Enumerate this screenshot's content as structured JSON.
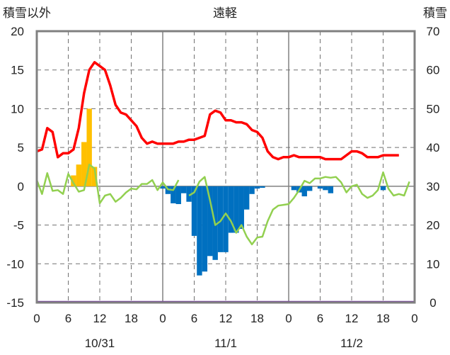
{
  "chart_data": {
    "type": "line",
    "title": "遠軽",
    "left_axis_label": "積雪以外",
    "right_axis_label": "積雪",
    "ylim_left": [
      -15,
      20
    ],
    "ylim_right": [
      0,
      70
    ],
    "left_ticks": [
      "20",
      "15",
      "10",
      "5",
      "0",
      "-5",
      "-10",
      "-15"
    ],
    "right_ticks": [
      "70",
      "60",
      "50",
      "40",
      "30",
      "20",
      "10",
      "0"
    ],
    "x_range_hours": [
      0,
      72
    ],
    "x_tick_labels": [
      "0",
      "6",
      "12",
      "18",
      "0",
      "6",
      "12",
      "18",
      "0",
      "6",
      "12",
      "18",
      "0"
    ],
    "date_labels": [
      "10/31",
      "11/1",
      "11/2"
    ],
    "colors": {
      "snow_depth": "#ff0000",
      "temperature": "#92d050",
      "snowfall_bars": "#ffc000",
      "negative_bars": "#0070c0",
      "bottom_line": "#7030a0"
    },
    "snow_depth_right_axis": [
      [
        0,
        39
      ],
      [
        1,
        39.5
      ],
      [
        2,
        45
      ],
      [
        3,
        44
      ],
      [
        4,
        37.5
      ],
      [
        5,
        38.5
      ],
      [
        6,
        38.5
      ],
      [
        7,
        39.5
      ],
      [
        8,
        45
      ],
      [
        9,
        54
      ],
      [
        10,
        60
      ],
      [
        11,
        62
      ],
      [
        12,
        61
      ],
      [
        13,
        60
      ],
      [
        14,
        56
      ],
      [
        15,
        51
      ],
      [
        16,
        49
      ],
      [
        17,
        48.5
      ],
      [
        18,
        47
      ],
      [
        19,
        45.5
      ],
      [
        20,
        42.5
      ],
      [
        21,
        41
      ],
      [
        22,
        41.5
      ],
      [
        23,
        41
      ],
      [
        24,
        41
      ],
      [
        25,
        41
      ],
      [
        26,
        41
      ],
      [
        27,
        41.5
      ],
      [
        28,
        41.5
      ],
      [
        29,
        42
      ],
      [
        30,
        42
      ],
      [
        31,
        42.5
      ],
      [
        32,
        43
      ],
      [
        33,
        48.5
      ],
      [
        34,
        49.5
      ],
      [
        35,
        49
      ],
      [
        36,
        47
      ],
      [
        37,
        47
      ],
      [
        38,
        46.5
      ],
      [
        39,
        46.5
      ],
      [
        40,
        46
      ],
      [
        41,
        44.5
      ],
      [
        42,
        44
      ],
      [
        43,
        42.5
      ],
      [
        44,
        39
      ],
      [
        45,
        37.5
      ],
      [
        46,
        37
      ],
      [
        47,
        37.5
      ],
      [
        48,
        37.5
      ],
      [
        49,
        38
      ],
      [
        50,
        37.5
      ],
      [
        51,
        37.5
      ],
      [
        52,
        37.5
      ],
      [
        53,
        37.5
      ],
      [
        54,
        37.5
      ],
      [
        55,
        37
      ],
      [
        56,
        37
      ],
      [
        57,
        37
      ],
      [
        58,
        37
      ],
      [
        59,
        38
      ],
      [
        60,
        39
      ],
      [
        61,
        39
      ],
      [
        62,
        38.5
      ],
      [
        63,
        37.5
      ],
      [
        64,
        37.5
      ],
      [
        65,
        37.5
      ],
      [
        66,
        38
      ],
      [
        67,
        38
      ],
      [
        68,
        38
      ],
      [
        69,
        38
      ]
    ],
    "temperature_left_axis": [
      [
        0,
        0.8
      ],
      [
        1,
        -1
      ],
      [
        2,
        1.7
      ],
      [
        3,
        -0.6
      ],
      [
        4,
        -0.5
      ],
      [
        5,
        -1
      ],
      [
        6,
        1.6
      ],
      [
        7,
        0.4
      ],
      [
        8,
        -0.7
      ],
      [
        9,
        -0.5
      ],
      [
        10,
        2.8
      ],
      [
        11,
        2.3
      ],
      [
        12,
        -2.2
      ],
      [
        13,
        -1.2
      ],
      [
        14,
        -1
      ],
      [
        15,
        -2
      ],
      [
        16,
        -1.5
      ],
      [
        17,
        -0.8
      ],
      [
        18,
        -0.3
      ],
      [
        19,
        -0.4
      ],
      [
        20,
        0.3
      ],
      [
        21,
        0.3
      ],
      [
        22,
        0.8
      ],
      [
        23,
        -0.5
      ],
      [
        24,
        0.5
      ],
      [
        25,
        -0.4
      ],
      [
        26,
        -0.5
      ],
      [
        27,
        0.8
      ],
      [
        29,
        -1.2
      ],
      [
        30,
        -0.8
      ],
      [
        31,
        0.6
      ],
      [
        32,
        1.2
      ],
      [
        33,
        -1.8
      ],
      [
        34,
        -5
      ],
      [
        35,
        -4.5
      ],
      [
        36,
        -3.5
      ],
      [
        37,
        -4.5
      ],
      [
        38,
        -6
      ],
      [
        39,
        -5
      ],
      [
        40,
        -6.5
      ],
      [
        41,
        -7.5
      ],
      [
        42,
        -6.6
      ],
      [
        43,
        -6.5
      ],
      [
        44,
        -4.5
      ],
      [
        45,
        -3
      ],
      [
        46,
        -2.5
      ],
      [
        47,
        -2.4
      ],
      [
        48,
        -2.3
      ],
      [
        49,
        -1.5
      ],
      [
        50,
        -0.5
      ],
      [
        51,
        0.7
      ],
      [
        52,
        0.4
      ],
      [
        53,
        1
      ],
      [
        54,
        1
      ],
      [
        55,
        1.2
      ],
      [
        56,
        1.1
      ],
      [
        57,
        1.2
      ],
      [
        58,
        0.5
      ],
      [
        59,
        -0.8
      ],
      [
        60,
        0
      ],
      [
        61,
        0.2
      ],
      [
        62,
        -1
      ],
      [
        63,
        -1.5
      ],
      [
        64,
        -1.2
      ],
      [
        65,
        -0.5
      ],
      [
        66,
        1.8
      ],
      [
        67,
        -0.3
      ],
      [
        68,
        -1.2
      ],
      [
        69,
        -1
      ],
      [
        70,
        -1.2
      ],
      [
        71,
        0.6
      ]
    ],
    "snowfall_bars_left_axis": [
      [
        7,
        1.4
      ],
      [
        8,
        2.8
      ],
      [
        9,
        5.7
      ],
      [
        10,
        10
      ],
      [
        11,
        2.5
      ]
    ],
    "negative_bars_left_axis": [
      [
        24,
        -0.3
      ],
      [
        25,
        -1
      ],
      [
        26,
        -2.2
      ],
      [
        27,
        -2.3
      ],
      [
        28,
        -0.9
      ],
      [
        29,
        -2
      ],
      [
        30,
        -6.4
      ],
      [
        31,
        -11.5
      ],
      [
        32,
        -11
      ],
      [
        33,
        -9
      ],
      [
        34,
        -9.5
      ],
      [
        35,
        -8.5
      ],
      [
        36,
        -8.5
      ],
      [
        37,
        -6
      ],
      [
        38,
        -6
      ],
      [
        39,
        -5.5
      ],
      [
        40,
        -3
      ],
      [
        41,
        -1
      ],
      [
        42,
        -0.3
      ],
      [
        43,
        -0.2
      ],
      [
        49,
        -0.5
      ],
      [
        50,
        -0.8
      ],
      [
        51,
        -1.3
      ],
      [
        52,
        -0.6
      ],
      [
        54,
        -0.3
      ],
      [
        55,
        -0.5
      ],
      [
        56,
        -0.9
      ],
      [
        66,
        -0.5
      ]
    ]
  }
}
